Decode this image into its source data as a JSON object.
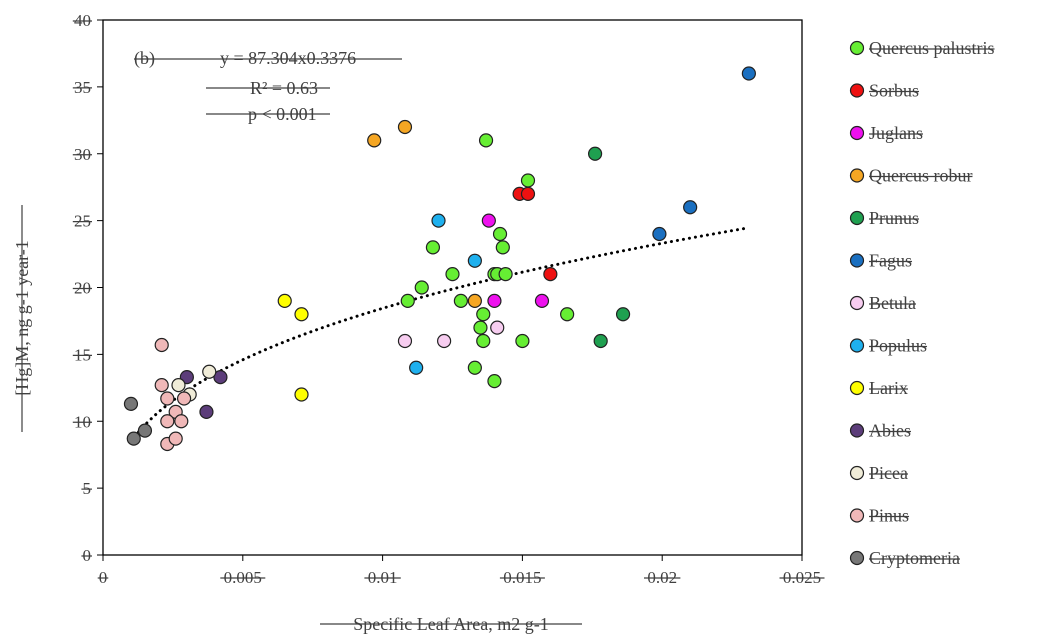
{
  "chart_data": {
    "type": "scatter",
    "xlabel": "Specific Leaf Area, m2 g-1",
    "ylabel": "[Hg]M, ng g-1 year-1",
    "xlim": [
      0,
      0.025
    ],
    "ylim": [
      0,
      40
    ],
    "x_ticks": [
      "0",
      "0.005",
      "0.01",
      "0.015",
      "0.02",
      "0.025"
    ],
    "y_ticks": [
      "0",
      "5",
      "10",
      "15",
      "20",
      "25",
      "30",
      "35",
      "40"
    ],
    "grid": false,
    "legend_position": "right",
    "annotations": {
      "panel": "(b)",
      "equation": "y = 87.304x0.3376",
      "r2": "R² = 0.63",
      "p": "p < 0.001"
    },
    "trendline": {
      "type": "power",
      "a": 87.304,
      "b": 0.3376,
      "x_from": 0.001,
      "x_to": 0.0231,
      "style": "dotted"
    },
    "series": [
      {
        "name": "Quercus palustris",
        "color": "#66ee33",
        "points": [
          [
            0.0137,
            31
          ],
          [
            0.0152,
            28
          ],
          [
            0.0118,
            23
          ],
          [
            0.0142,
            24
          ],
          [
            0.0143,
            23
          ],
          [
            0.0125,
            21
          ],
          [
            0.014,
            21
          ],
          [
            0.0141,
            21
          ],
          [
            0.0144,
            21
          ],
          [
            0.0114,
            20
          ],
          [
            0.0109,
            19
          ],
          [
            0.0128,
            19
          ],
          [
            0.0136,
            18
          ],
          [
            0.0166,
            18
          ],
          [
            0.0135,
            17
          ],
          [
            0.0136,
            16
          ],
          [
            0.015,
            16
          ],
          [
            0.0133,
            14
          ],
          [
            0.014,
            13
          ]
        ]
      },
      {
        "name": "Sorbus",
        "color": "#ee1111",
        "points": [
          [
            0.0149,
            27
          ],
          [
            0.0152,
            27
          ],
          [
            0.016,
            21
          ]
        ]
      },
      {
        "name": "Juglans",
        "color": "#ee11ee",
        "points": [
          [
            0.0138,
            25
          ],
          [
            0.014,
            19
          ],
          [
            0.0157,
            19
          ]
        ]
      },
      {
        "name": "Quercus robur",
        "color": "#f5a623",
        "points": [
          [
            0.0097,
            31
          ],
          [
            0.0108,
            32
          ],
          [
            0.0133,
            19
          ]
        ]
      },
      {
        "name": "Prunus",
        "color": "#1fa050",
        "points": [
          [
            0.0176,
            30
          ],
          [
            0.0186,
            18
          ],
          [
            0.0178,
            16
          ]
        ]
      },
      {
        "name": "Fagus",
        "color": "#1a6fc0",
        "points": [
          [
            0.0231,
            36
          ],
          [
            0.021,
            26
          ],
          [
            0.0199,
            24
          ]
        ]
      },
      {
        "name": "Betula",
        "color": "#f7cdf0",
        "points": [
          [
            0.0108,
            16
          ],
          [
            0.0122,
            16
          ],
          [
            0.0141,
            17
          ]
        ]
      },
      {
        "name": "Populus",
        "color": "#1eb0ee",
        "points": [
          [
            0.012,
            25
          ],
          [
            0.0133,
            22
          ],
          [
            0.0112,
            14
          ]
        ]
      },
      {
        "name": "Larix",
        "color": "#ffff00",
        "points": [
          [
            0.0065,
            19
          ],
          [
            0.0071,
            18
          ],
          [
            0.0071,
            12
          ]
        ]
      },
      {
        "name": "Abies",
        "color": "#5c3d7a",
        "points": [
          [
            0.003,
            13.3
          ],
          [
            0.0042,
            13.3
          ],
          [
            0.0037,
            10.7
          ]
        ]
      },
      {
        "name": "Picea",
        "color": "#f0ecd8",
        "points": [
          [
            0.0027,
            12.7
          ],
          [
            0.0038,
            13.7
          ],
          [
            0.0031,
            12
          ]
        ]
      },
      {
        "name": "Pinus",
        "color": "#f0b8b8",
        "points": [
          [
            0.0021,
            15.7
          ],
          [
            0.0021,
            12.7
          ],
          [
            0.0023,
            11.7
          ],
          [
            0.0029,
            11.7
          ],
          [
            0.0026,
            10.7
          ],
          [
            0.0023,
            10
          ],
          [
            0.0028,
            10
          ],
          [
            0.0023,
            8.3
          ],
          [
            0.0026,
            8.7
          ]
        ]
      },
      {
        "name": "Cryptomeria",
        "color": "#777777",
        "points": [
          [
            0.001,
            11.3
          ],
          [
            0.0011,
            8.7
          ],
          [
            0.0015,
            9.3
          ]
        ]
      }
    ]
  }
}
